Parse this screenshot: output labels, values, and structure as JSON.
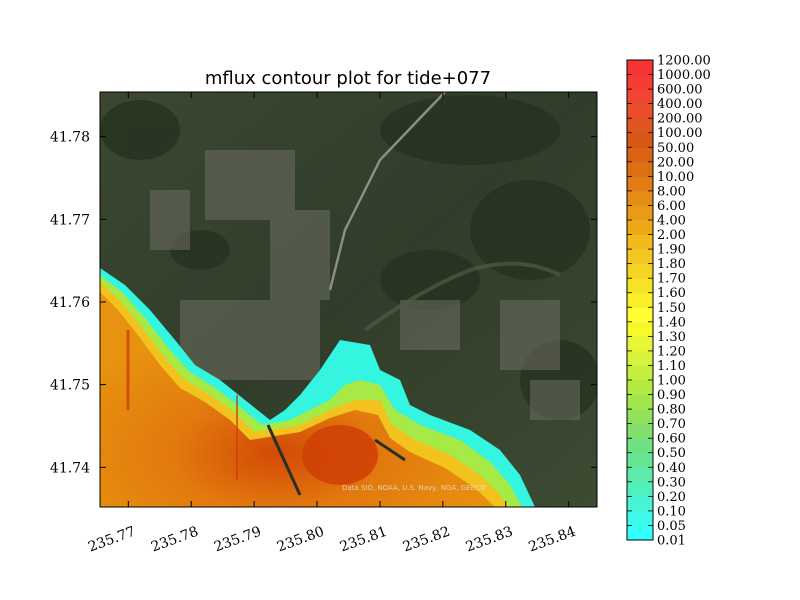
{
  "chart_data": {
    "type": "contour",
    "title": "mflux contour plot for tide+077",
    "xlim": [
      235.7655,
      235.8445
    ],
    "ylim": [
      41.7352,
      41.7854
    ],
    "x_ticks": [
      {
        "value": 235.77,
        "label": "235.77"
      },
      {
        "value": 235.78,
        "label": "235.78"
      },
      {
        "value": 235.79,
        "label": "235.79"
      },
      {
        "value": 235.8,
        "label": "235.80"
      },
      {
        "value": 235.81,
        "label": "235.81"
      },
      {
        "value": 235.82,
        "label": "235.82"
      },
      {
        "value": 235.83,
        "label": "235.83"
      },
      {
        "value": 235.84,
        "label": "235.84"
      }
    ],
    "y_ticks": [
      {
        "value": 41.74,
        "label": "41.74"
      },
      {
        "value": 41.75,
        "label": "41.75"
      },
      {
        "value": 41.76,
        "label": "41.76"
      },
      {
        "value": 41.77,
        "label": "41.77"
      },
      {
        "value": 41.78,
        "label": "41.78"
      }
    ],
    "x_tick_rotation": 20,
    "background": "satellite imagery",
    "attribution": "Data SIO, NOAA, U.S. Navy, NGA, GEBCO",
    "colorbar": {
      "levels": [
        "0.01",
        "0.05",
        "0.10",
        "0.20",
        "0.30",
        "0.40",
        "0.50",
        "0.60",
        "0.70",
        "0.80",
        "0.90",
        "1.00",
        "1.10",
        "1.20",
        "1.30",
        "1.40",
        "1.50",
        "1.60",
        "1.70",
        "1.80",
        "1.90",
        "2.00",
        "4.00",
        "6.00",
        "8.00",
        "10.00",
        "20.00",
        "50.00",
        "100.00",
        "200.00",
        "400.00",
        "600.00",
        "1000.00",
        "1200.00"
      ],
      "colors": [
        "#33ffff",
        "#3dfaea",
        "#47f5d4",
        "#52f0bf",
        "#5cebaa",
        "#66e694",
        "#70e180",
        "#7fe06c",
        "#8fe25a",
        "#a0e64c",
        "#b2ea42",
        "#c4ef3d",
        "#d6f33a",
        "#e8f735",
        "#f6f92c",
        "#ffff33",
        "#fbef2d",
        "#f8e228",
        "#f5d423",
        "#f2c71f",
        "#f0ba1c",
        "#eda81a",
        "#e99a18",
        "#e58c16",
        "#e07e15",
        "#dc6f14",
        "#d86414",
        "#d45a15",
        "#e05525",
        "#ea4e2b",
        "#f04530",
        "#f53c33",
        "#f83535"
      ],
      "position": "right"
    }
  }
}
